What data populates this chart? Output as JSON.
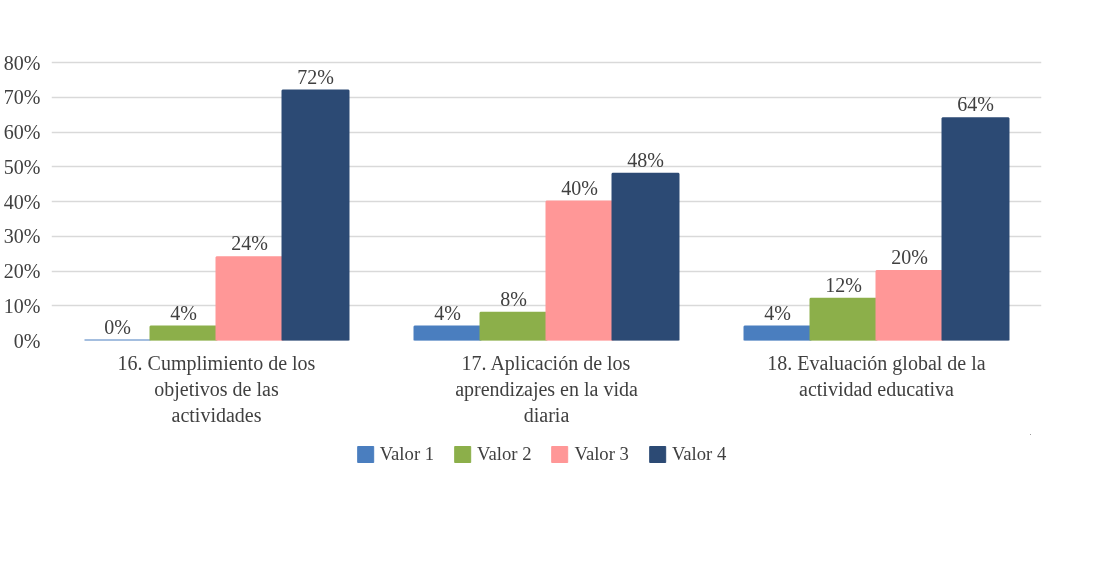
{
  "chart_data": {
    "type": "bar",
    "categories": [
      "16. Cumplimiento de los objetivos de las actividades",
      "17. Aplicación de los aprendizajes en la vida diaria",
      "18. Evaluación global de la actividad educativa"
    ],
    "series": [
      {
        "name": "Valor 1",
        "color": "#4a7ebf",
        "values": [
          0,
          4,
          4
        ],
        "value_labels": [
          "0%",
          "4%",
          "4%"
        ]
      },
      {
        "name": "Valor 2",
        "color": "#8caf4a",
        "values": [
          4,
          8,
          12
        ],
        "value_labels": [
          "4%",
          "8%",
          "12%"
        ]
      },
      {
        "name": "Valor 3",
        "color": "#ff9797",
        "values": [
          24,
          40,
          20
        ],
        "value_labels": [
          "24%",
          "40%",
          "20%"
        ]
      },
      {
        "name": "Valor 4",
        "color": "#2c4a74",
        "values": [
          72,
          48,
          64
        ],
        "value_labels": [
          "72%",
          "48%",
          "64%"
        ]
      }
    ],
    "ylim": [
      0,
      80
    ],
    "yticks": [
      {
        "value": 0,
        "label": "0%"
      },
      {
        "value": 10,
        "label": "10%"
      },
      {
        "value": 20,
        "label": "20%"
      },
      {
        "value": 30,
        "label": "30%"
      },
      {
        "value": 40,
        "label": "40%"
      },
      {
        "value": 50,
        "label": "50%"
      },
      {
        "value": 60,
        "label": "60%"
      },
      {
        "value": 70,
        "label": "70%"
      },
      {
        "value": 80,
        "label": "80%"
      }
    ],
    "grid": "y",
    "legend": "bottom"
  }
}
